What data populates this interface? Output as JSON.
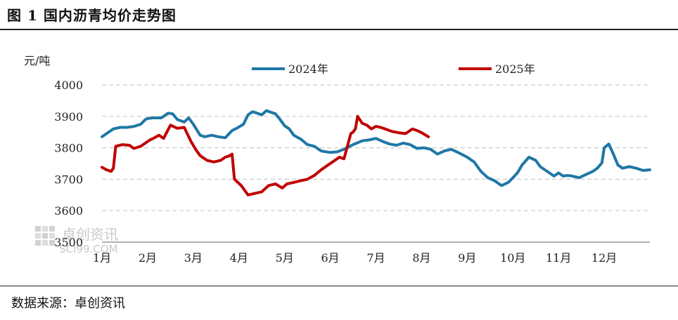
{
  "figure_title": "图 1 国内沥青均价走势图",
  "source_text": "数据来源：卓创资讯",
  "watermark": {
    "text": "卓创资讯",
    "subtext": "SCI99.COM"
  },
  "colors": {
    "2024": "#1F77A6",
    "2025": "#C00000",
    "grid": "#cccccc"
  },
  "chart_data": {
    "type": "line",
    "ylabel": "元/吨",
    "ylim": [
      3500,
      4000
    ],
    "yticks": [
      3500,
      3600,
      3700,
      3800,
      3900,
      4000
    ],
    "xlim": [
      1,
      13
    ],
    "xticks": [
      {
        "x": 1,
        "label": "1月"
      },
      {
        "x": 2,
        "label": "2月"
      },
      {
        "x": 3,
        "label": "3月"
      },
      {
        "x": 4,
        "label": "4月"
      },
      {
        "x": 5,
        "label": "5月"
      },
      {
        "x": 6,
        "label": "6月"
      },
      {
        "x": 7,
        "label": "7月"
      },
      {
        "x": 8,
        "label": "8月"
      },
      {
        "x": 9,
        "label": "9月"
      },
      {
        "x": 10,
        "label": "10月"
      },
      {
        "x": 11,
        "label": "11月"
      },
      {
        "x": 12,
        "label": "12月"
      }
    ],
    "grid": "horizontal dashed",
    "legend_position": "top",
    "series": [
      {
        "name": "2024年",
        "x": [
          1.0,
          1.1,
          1.25,
          1.4,
          1.55,
          1.7,
          1.85,
          1.95,
          2.0,
          2.1,
          2.3,
          2.45,
          2.55,
          2.65,
          2.8,
          2.9,
          3.0,
          3.15,
          3.25,
          3.4,
          3.55,
          3.7,
          3.85,
          3.95,
          4.1,
          4.2,
          4.3,
          4.4,
          4.5,
          4.6,
          4.8,
          4.9,
          5.0,
          5.1,
          5.2,
          5.35,
          5.5,
          5.65,
          5.8,
          6.0,
          6.15,
          6.3,
          6.5,
          6.7,
          6.85,
          7.0,
          7.15,
          7.3,
          7.45,
          7.6,
          7.75,
          7.9,
          8.05,
          8.2,
          8.35,
          8.5,
          8.65,
          8.8,
          9.0,
          9.15,
          9.3,
          9.45,
          9.6,
          9.75,
          9.9,
          10.0,
          10.1,
          10.2,
          10.35,
          10.5,
          10.6,
          10.7,
          10.8,
          10.9,
          11.0,
          11.1,
          11.2,
          11.3,
          11.45,
          11.6,
          11.75,
          11.85,
          11.95,
          12.0,
          12.1,
          12.2,
          12.3,
          12.4,
          12.55,
          12.7,
          12.85,
          13.0
        ],
        "values": [
          3835,
          3845,
          3860,
          3865,
          3865,
          3868,
          3875,
          3890,
          3893,
          3895,
          3895,
          3910,
          3908,
          3890,
          3882,
          3895,
          3875,
          3840,
          3835,
          3840,
          3835,
          3832,
          3855,
          3862,
          3875,
          3905,
          3915,
          3910,
          3905,
          3918,
          3908,
          3890,
          3870,
          3860,
          3840,
          3828,
          3810,
          3805,
          3790,
          3785,
          3787,
          3795,
          3810,
          3822,
          3825,
          3830,
          3820,
          3812,
          3808,
          3815,
          3810,
          3798,
          3800,
          3795,
          3780,
          3790,
          3795,
          3785,
          3770,
          3755,
          3725,
          3705,
          3695,
          3680,
          3690,
          3705,
          3720,
          3745,
          3770,
          3760,
          3740,
          3730,
          3720,
          3710,
          3720,
          3710,
          3712,
          3710,
          3705,
          3715,
          3725,
          3735,
          3752,
          3800,
          3812,
          3780,
          3745,
          3735,
          3740,
          3735,
          3728,
          3730
        ]
      },
      {
        "name": "2025年",
        "x": [
          1.0,
          1.1,
          1.2,
          1.25,
          1.3,
          1.45,
          1.6,
          1.7,
          1.85,
          1.95,
          2.05,
          2.15,
          2.25,
          2.35,
          2.5,
          2.65,
          2.8,
          2.85,
          2.95,
          3.05,
          3.15,
          3.3,
          3.45,
          3.6,
          3.7,
          3.8,
          3.85,
          3.9,
          4.05,
          4.2,
          4.35,
          4.5,
          4.65,
          4.8,
          4.95,
          5.05,
          5.2,
          5.35,
          5.5,
          5.65,
          5.8,
          5.95,
          6.05,
          6.2,
          6.3,
          6.45,
          6.5,
          6.55,
          6.6,
          6.7,
          6.8,
          6.9,
          7.0,
          7.1,
          7.2,
          7.35,
          7.5,
          7.65,
          7.8,
          7.9,
          8.0,
          8.15
        ],
        "values": [
          3738,
          3730,
          3725,
          3735,
          3805,
          3810,
          3808,
          3798,
          3805,
          3815,
          3825,
          3832,
          3840,
          3830,
          3872,
          3862,
          3865,
          3850,
          3820,
          3795,
          3775,
          3760,
          3755,
          3760,
          3770,
          3775,
          3780,
          3700,
          3680,
          3650,
          3655,
          3660,
          3680,
          3685,
          3672,
          3685,
          3690,
          3695,
          3700,
          3712,
          3730,
          3745,
          3755,
          3770,
          3765,
          3845,
          3850,
          3860,
          3900,
          3878,
          3872,
          3860,
          3868,
          3865,
          3860,
          3852,
          3848,
          3845,
          3860,
          3855,
          3848,
          3835
        ]
      }
    ]
  }
}
